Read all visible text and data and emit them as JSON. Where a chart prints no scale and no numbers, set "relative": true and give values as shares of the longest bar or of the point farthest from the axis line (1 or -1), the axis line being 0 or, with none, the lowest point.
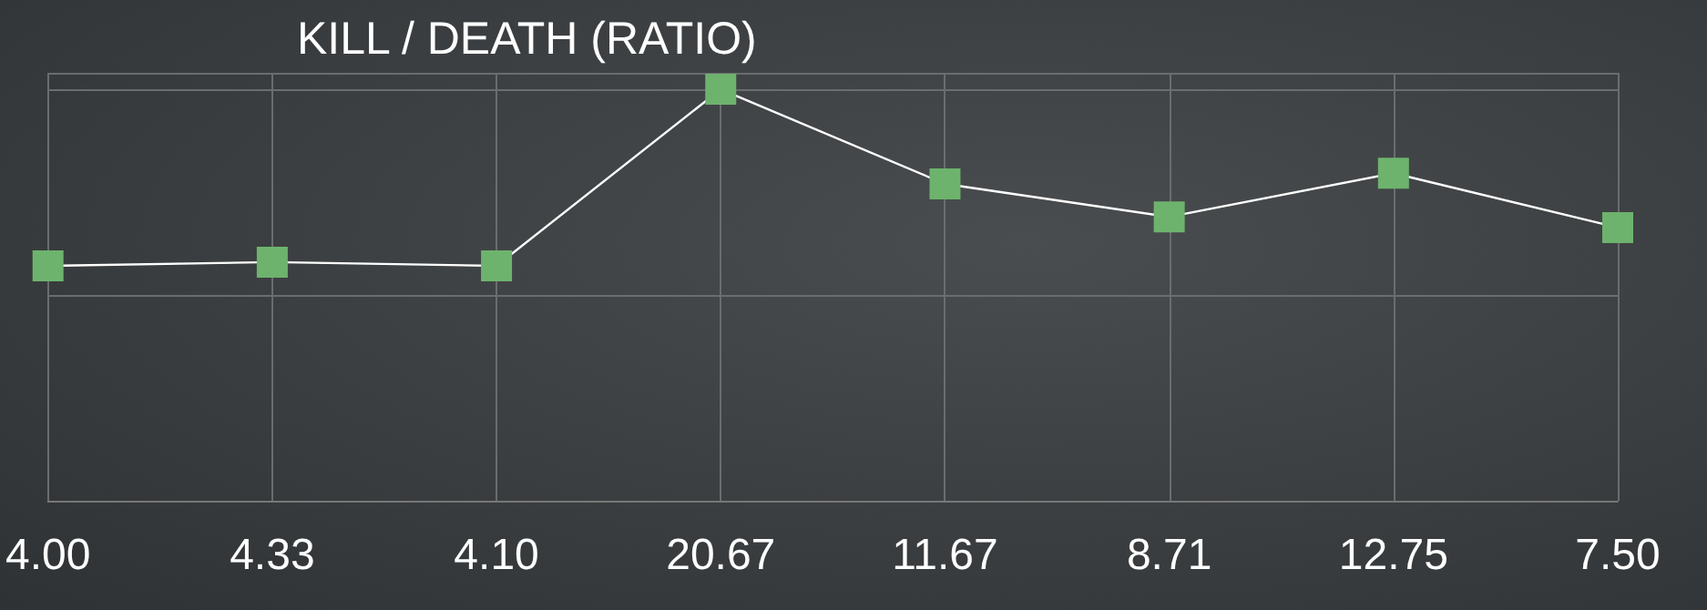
{
  "chart_data": {
    "type": "line",
    "title": "KILL / DEATH (RATIO)",
    "categories": [
      "4.00",
      "4.33",
      "4.10",
      "20.67",
      "11.67",
      "8.71",
      "12.75",
      "7.50"
    ],
    "relative": true,
    "series": [
      {
        "color": "#ffffff",
        "colors": [
          "#6db36d",
          "#6db36d",
          "#6db36d",
          "#6db36d",
          "#6db36d",
          "#6db36d",
          "#6db36d",
          "#6db36d"
        ],
        "values": [
          0.571,
          0.58,
          0.571,
          1,
          0.77,
          0.69,
          0.796,
          0.664
        ]
      }
    ],
    "marker": "square",
    "grid": true,
    "line_style": "solid"
  }
}
